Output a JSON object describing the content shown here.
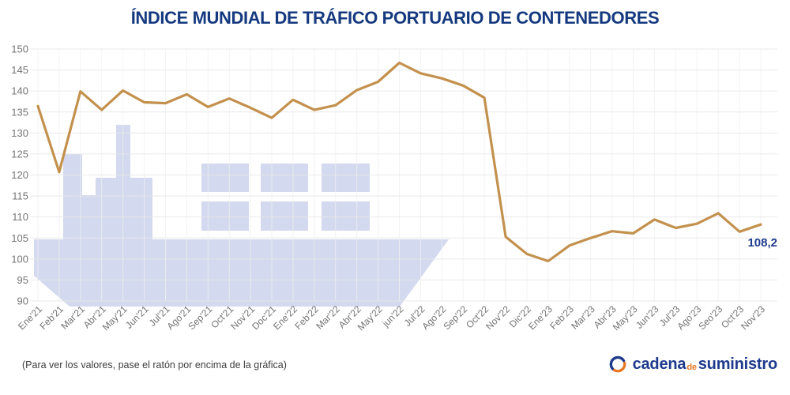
{
  "title": "ÍNDICE MUNDIAL DE TRÁFICO PORTUARIO DE CONTENEDORES",
  "chart_data": {
    "type": "line",
    "title": "ÍNDICE MUNDIAL DE TRÁFICO PORTUARIO DE CONTENEDORES",
    "categories": [
      "Ene'21",
      "Feb'21",
      "Mar'21",
      "Abr'21",
      "May'21",
      "Jun'21",
      "Jul'21",
      "Ago'21",
      "Sep'21",
      "Oct'21",
      "Nov'21",
      "Doc'21",
      "Ene'22",
      "Feb'22",
      "Mar'22",
      "Abr'22",
      "May'22",
      "jun'22",
      "Jul'22",
      "Ago'22",
      "Sep'22",
      "Oct'22",
      "Nov'22",
      "Dic'22",
      "Ene'23",
      "Feb'23",
      "Mar'23",
      "Abr'23",
      "May'23",
      "Jun'23",
      "Jul'23",
      "Ago'23",
      "Seo'23",
      "Oct'23",
      "Nov'23"
    ],
    "values": [
      136.4,
      120.7,
      139.9,
      135.5,
      140.1,
      137.3,
      137.1,
      139.2,
      136.2,
      138.2,
      136.0,
      133.6,
      137.9,
      135.5,
      136.6,
      140.2,
      142.2,
      146.7,
      144.2,
      143.0,
      141.3,
      138.4,
      105.3,
      101.2,
      99.5,
      103.2,
      105.0,
      106.6,
      106.1,
      109.4,
      107.4,
      108.4,
      110.9,
      106.5,
      108.2
    ],
    "ylim": [
      90,
      150
    ],
    "yticks": [
      90,
      95,
      100,
      105,
      110,
      115,
      120,
      125,
      130,
      135,
      140,
      145,
      150
    ],
    "xlabel": "",
    "ylabel": "",
    "grid": true,
    "legend": "none",
    "last_point_label": {
      "text": "108,2",
      "category": "Nov'23",
      "value": 108.2
    },
    "watermark": "container-ship-silhouette"
  },
  "footer": {
    "hint": "(Para ver los valores, pase el ratón por encima de la gráfica)",
    "logo": {
      "word1": "cadena",
      "word2": "de",
      "word3": "suministro"
    }
  },
  "colors": {
    "title": "#15397F",
    "line": "#C3914D",
    "axis_text": "#757575",
    "grid_h": "#E7E7E7",
    "grid_v": "#F0F0F0",
    "watermark": "#D3D9EE",
    "annotation": "#1E3A8C",
    "hint_text": "#3D3D3D",
    "logo_blue": "#1E3A8C",
    "logo_orange": "#E87722"
  }
}
